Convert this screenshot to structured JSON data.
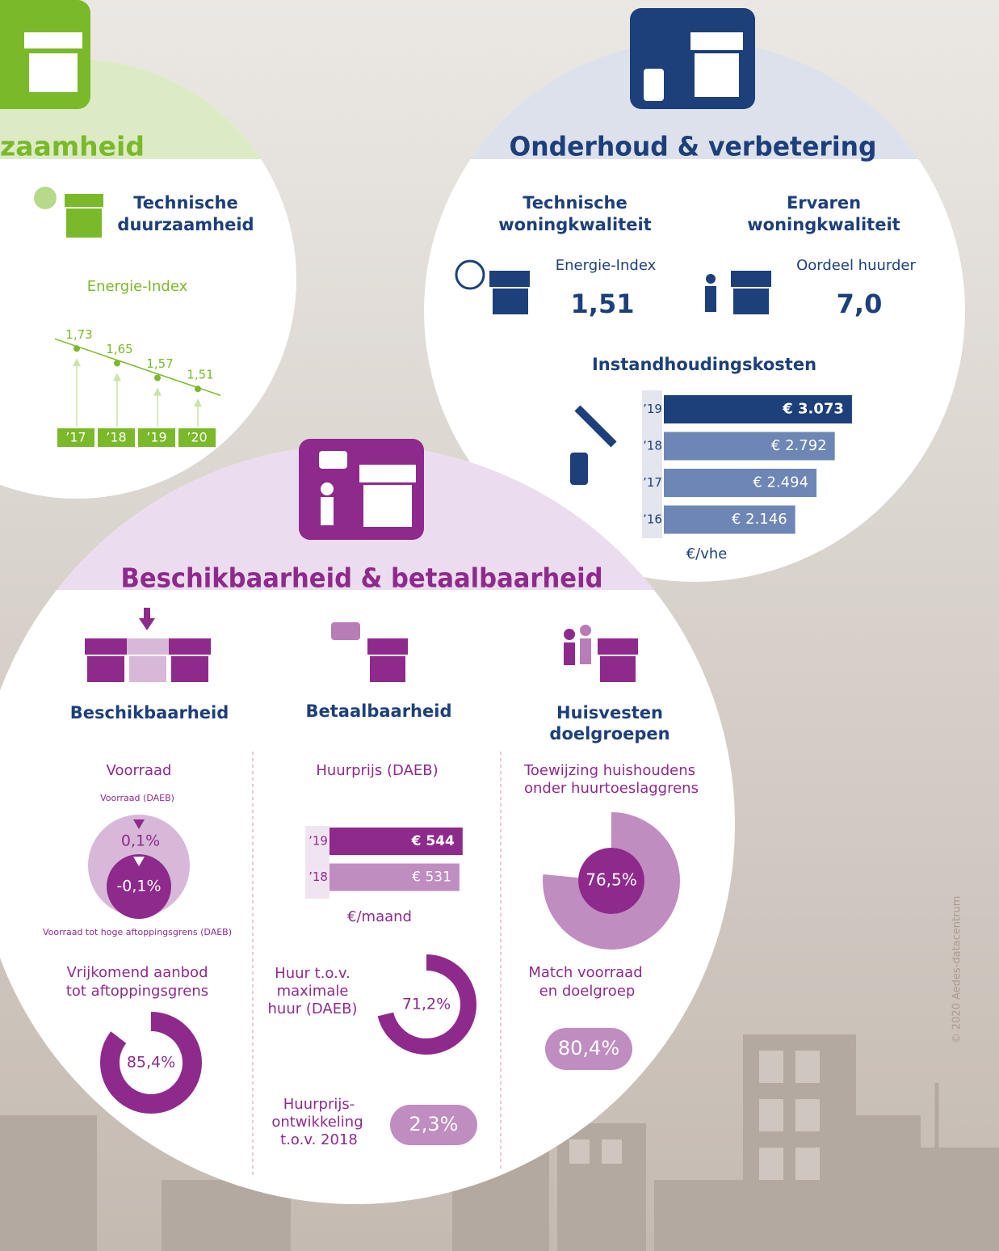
{
  "duurzaamheid": {
    "title": "zaamheid",
    "heading": [
      "Technische",
      "duurzaamheid"
    ],
    "chart": {
      "title": "Energie-Index",
      "categories": [
        "’17",
        "’18",
        "’19",
        "’20"
      ],
      "values": [
        1.73,
        1.65,
        1.57,
        1.51
      ],
      "value_labels": [
        "1,73",
        "1,65",
        "1,57",
        "1,51"
      ]
    }
  },
  "onderhoud": {
    "title": "Onderhoud & verbetering",
    "technisch": {
      "heading": [
        "Technische",
        "woningkwaliteit"
      ],
      "label": "Energie-Index",
      "value": "1,51"
    },
    "ervaren": {
      "heading": [
        "Ervaren",
        "woningkwaliteit"
      ],
      "label": "Oordeel huurder",
      "value": "7,0"
    },
    "kosten": {
      "title": "Instandhoudingskosten",
      "categories": [
        "’19",
        "’18",
        "’17",
        "’16"
      ],
      "values": [
        3073,
        2792,
        2494,
        2146
      ],
      "value_labels": [
        "€ 3.073",
        "€ 2.792",
        "€ 2.494",
        "€ 2.146"
      ],
      "unit": "€/vhe"
    }
  },
  "beschikbaarheid": {
    "title": "Beschikbaarheid & betaalbaarheid",
    "beschikbaarheid": {
      "heading": [
        "Beschikbaarheid"
      ],
      "voorraad": {
        "title": "Voorraad",
        "outer_label": "Voorraad (DAEB)",
        "outer_value": "0,1%",
        "inner_value": "-0,1%",
        "inner_label": "Voorraad tot hoge aftoppingsgrens (DAEB)"
      },
      "aanbod": {
        "title": [
          "Vrijkomend aanbod",
          "tot aftoppingsgrens"
        ],
        "value": 85.4,
        "value_label": "85,4%"
      }
    },
    "betaalbaarheid": {
      "heading": [
        "Betaalbaarheid"
      ],
      "huurprijs": {
        "title": "Huurprijs (DAEB)",
        "categories": [
          "’19",
          "’18"
        ],
        "values": [
          544,
          531
        ],
        "value_labels": [
          "€ 544",
          "€ 531"
        ],
        "unit": "€/maand"
      },
      "huur_max": {
        "title": [
          "Huur t.o.v.",
          "maximale",
          "huur (DAEB)"
        ],
        "value": 71.2,
        "value_label": "71,2%"
      },
      "ontwikkeling": {
        "title": [
          "Huurprijs-",
          "ontwikkeling",
          "t.o.v. 2018"
        ],
        "value": "2,3%"
      }
    },
    "doelgroepen": {
      "heading": [
        "Huisvesten",
        "doelgroepen"
      ],
      "toewijzing": {
        "title": [
          "Toewijzing huishoudens",
          "onder huurtoeslaggrens"
        ],
        "value": 76.5,
        "value_label": "76,5%"
      },
      "match": {
        "title": [
          "Match voorraad",
          "en doelgroep"
        ],
        "value": "80,4%"
      }
    }
  },
  "copyright": "© 2020 Aedes-datacentrum"
}
